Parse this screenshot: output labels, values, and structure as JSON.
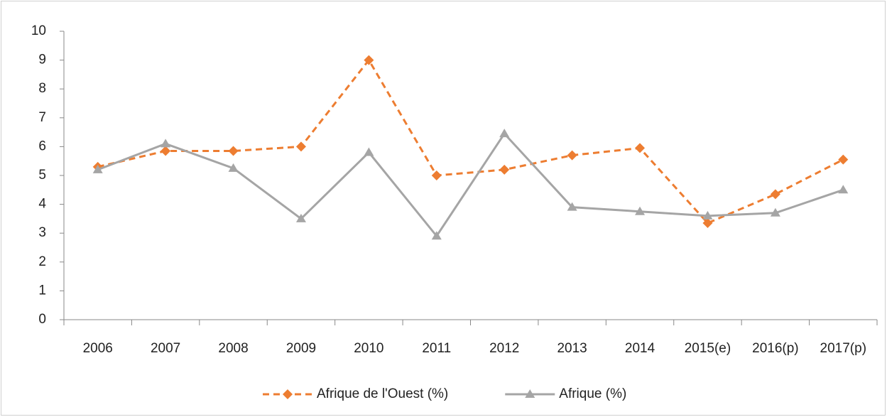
{
  "chart_data": {
    "type": "line",
    "categories": [
      "2006",
      "2007",
      "2008",
      "2009",
      "2010",
      "2011",
      "2012",
      "2013",
      "2014",
      "2015(e)",
      "2016(p)",
      "2017(p)"
    ],
    "series": [
      {
        "name": "Afrique de l'Ouest (%)",
        "color": "#ed7d31",
        "dash": true,
        "marker": "diamond",
        "values": [
          5.3,
          5.85,
          5.85,
          6.0,
          9.0,
          5.0,
          5.2,
          5.7,
          5.95,
          3.35,
          4.35,
          5.55
        ]
      },
      {
        "name": "Afrique (%)",
        "color": "#a5a5a5",
        "dash": false,
        "marker": "triangle",
        "values": [
          5.2,
          6.1,
          5.25,
          3.5,
          5.8,
          2.9,
          6.45,
          3.9,
          3.75,
          3.6,
          3.7,
          4.5
        ]
      }
    ],
    "ylim": [
      0,
      10
    ],
    "yticks": [
      0,
      1,
      2,
      3,
      4,
      5,
      6,
      7,
      8,
      9,
      10
    ],
    "grid": false,
    "legend": "bottom"
  }
}
